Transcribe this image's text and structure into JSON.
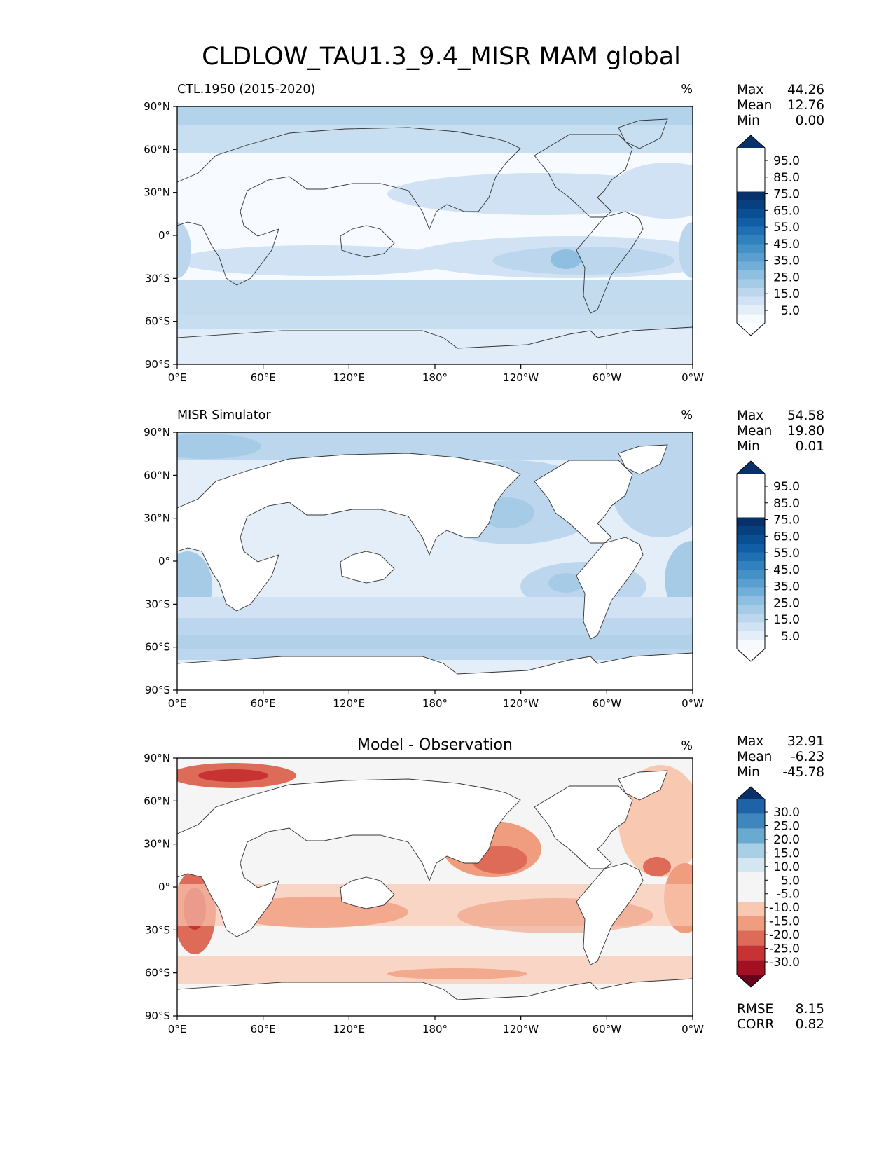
{
  "title": "CLDLOW_TAU1.3_9.4_MISR MAM global",
  "lon_ticks": [
    "0°E",
    "60°E",
    "120°E",
    "180°",
    "120°W",
    "60°W",
    "0°W"
  ],
  "lat_ticks": [
    "90°N",
    "60°N",
    "30°N",
    "0°",
    "30°S",
    "60°S",
    "90°S"
  ],
  "chart_data": [
    {
      "type": "heatmap",
      "panel_title": "CTL.1950 (2015-2020)",
      "units": "%",
      "stats": [
        {
          "label": "Max",
          "value": "44.26"
        },
        {
          "label": "Mean",
          "value": "12.76"
        },
        {
          "label": "Min",
          "value": "0.00"
        }
      ],
      "colorbar": {
        "labels": [
          "95.0",
          "85.0",
          "75.0",
          "65.0",
          "55.0",
          "45.0",
          "35.0",
          "25.0",
          "15.0",
          "5.0"
        ],
        "levels": [
          0,
          5,
          10,
          15,
          20,
          25,
          30,
          35,
          40,
          45,
          50,
          55,
          60,
          65,
          70,
          75,
          80,
          85,
          90,
          95,
          100
        ],
        "colors": [
          "#f7fbff",
          "#e3eef9",
          "#d0e2f3",
          "#bcd7ed",
          "#a6cbe6",
          "#8ebfe0",
          "#71afd8",
          "#5a9fcf",
          "#4391c6",
          "#3081bd",
          "#1f6fb3",
          "#125ea6",
          "#0a4f93",
          "#083f7f",
          "#08306b"
        ],
        "over_color": "#08306b",
        "under_color": "#ffffff"
      },
      "xlim": [
        0,
        360
      ],
      "ylim": [
        -90,
        90
      ]
    },
    {
      "type": "heatmap",
      "panel_title": "MISR Simulator",
      "units": "%",
      "stats": [
        {
          "label": "Max",
          "value": "54.58"
        },
        {
          "label": "Mean",
          "value": "19.80"
        },
        {
          "label": "Min",
          "value": "0.01"
        }
      ],
      "colorbar": {
        "labels": [
          "95.0",
          "85.0",
          "75.0",
          "65.0",
          "55.0",
          "45.0",
          "35.0",
          "25.0",
          "15.0",
          "5.0"
        ],
        "levels": [
          0,
          5,
          10,
          15,
          20,
          25,
          30,
          35,
          40,
          45,
          50,
          55,
          60,
          65,
          70,
          75,
          80,
          85,
          90,
          95,
          100
        ],
        "colors": [
          "#f7fbff",
          "#e3eef9",
          "#d0e2f3",
          "#bcd7ed",
          "#a6cbe6",
          "#8ebfe0",
          "#71afd8",
          "#5a9fcf",
          "#4391c6",
          "#3081bd",
          "#1f6fb3",
          "#125ea6",
          "#0a4f93",
          "#083f7f",
          "#08306b"
        ],
        "over_color": "#08306b",
        "under_color": "#ffffff"
      },
      "xlim": [
        0,
        360
      ],
      "ylim": [
        -90,
        90
      ]
    },
    {
      "type": "heatmap",
      "panel_title": "Model - Observation",
      "units": "%",
      "stats": [
        {
          "label": "Max",
          "value": "32.91"
        },
        {
          "label": "Mean",
          "value": "-6.23"
        },
        {
          "label": "Min",
          "value": "-45.78"
        }
      ],
      "colorbar": {
        "labels": [
          "30.0",
          "25.0",
          "20.0",
          "15.0",
          "10.0",
          "5.0",
          "-5.0",
          "-10.0",
          "-15.0",
          "-20.0",
          "-25.0",
          "-30.0"
        ],
        "levels": [
          -30,
          -25,
          -20,
          -15,
          -10,
          -5,
          5,
          10,
          15,
          20,
          25,
          30
        ],
        "colors": [
          "#a50f22",
          "#c73333",
          "#de6a58",
          "#f09d7f",
          "#f9c8b0",
          "#f5f5f5",
          "#d4e6f0",
          "#a9cfe4",
          "#6aaad1",
          "#3f86bd",
          "#1f62a7"
        ],
        "over_color": "#08306b",
        "under_color": "#67001f"
      },
      "extra_stats": [
        {
          "label": "RMSE",
          "value": "8.15"
        },
        {
          "label": "CORR",
          "value": "0.82"
        }
      ],
      "xlim": [
        0,
        360
      ],
      "ylim": [
        -90,
        90
      ]
    }
  ]
}
